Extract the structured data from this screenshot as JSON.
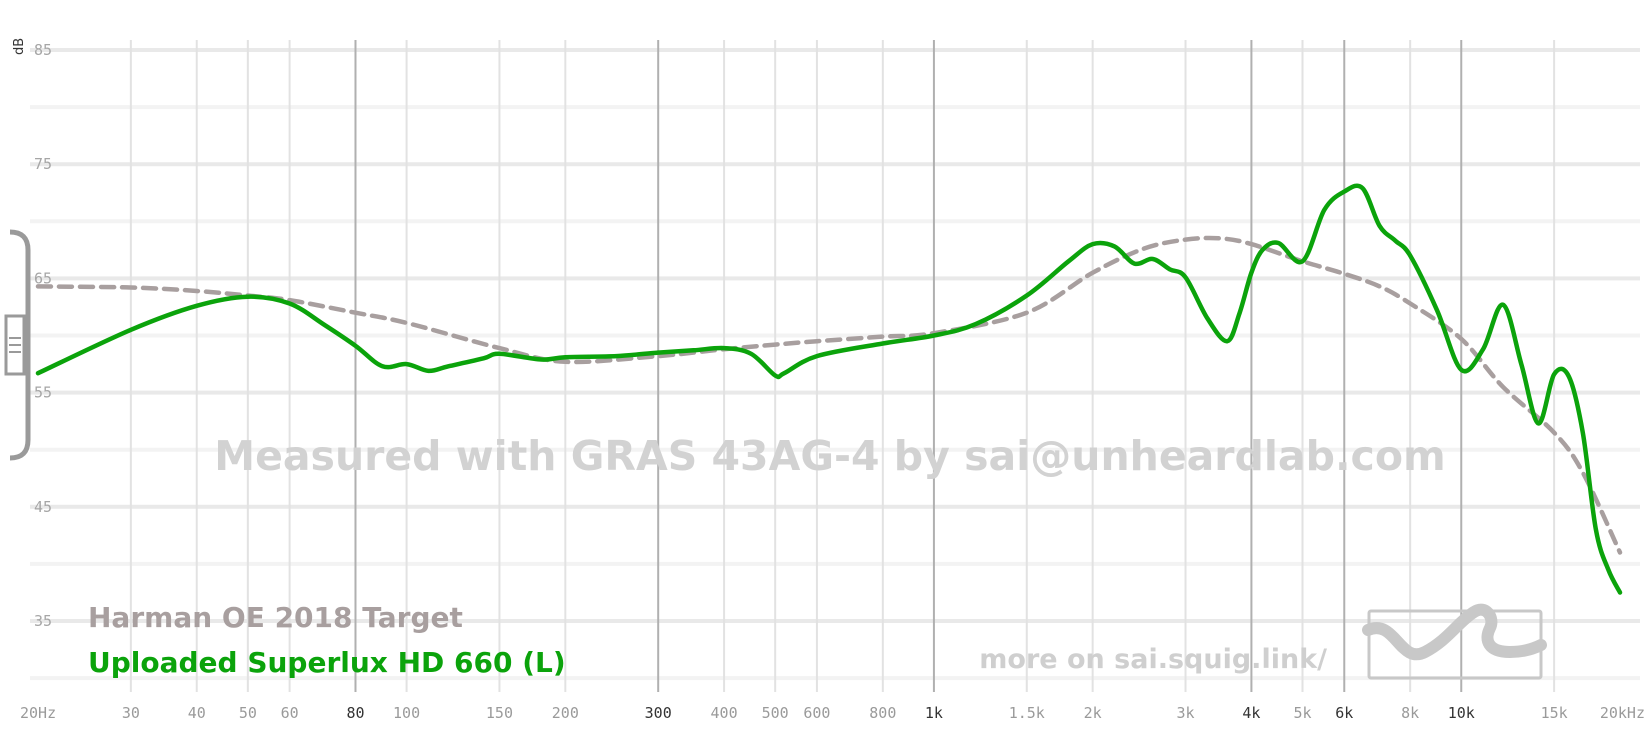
{
  "chart_data": {
    "type": "line",
    "xscale": "log",
    "xlim": [
      20,
      20000
    ],
    "ylim": [
      30,
      86
    ],
    "ylabel": "dB",
    "yticks": [
      35,
      45,
      55,
      65,
      75,
      85
    ],
    "xticks": [
      {
        "f": 20,
        "label": "20Hz",
        "major": false
      },
      {
        "f": 30,
        "label": "30",
        "major": false
      },
      {
        "f": 40,
        "label": "40",
        "major": false
      },
      {
        "f": 50,
        "label": "50",
        "major": false
      },
      {
        "f": 60,
        "label": "60",
        "major": false
      },
      {
        "f": 80,
        "label": "80",
        "major": true
      },
      {
        "f": 100,
        "label": "100",
        "major": false
      },
      {
        "f": 150,
        "label": "150",
        "major": false
      },
      {
        "f": 200,
        "label": "200",
        "major": false
      },
      {
        "f": 300,
        "label": "300",
        "major": true
      },
      {
        "f": 400,
        "label": "400",
        "major": false
      },
      {
        "f": 500,
        "label": "500",
        "major": false
      },
      {
        "f": 600,
        "label": "600",
        "major": false
      },
      {
        "f": 800,
        "label": "800",
        "major": false
      },
      {
        "f": 1000,
        "label": "1k",
        "major": true
      },
      {
        "f": 1500,
        "label": "1.5k",
        "major": false
      },
      {
        "f": 2000,
        "label": "2k",
        "major": false
      },
      {
        "f": 3000,
        "label": "3k",
        "major": false
      },
      {
        "f": 4000,
        "label": "4k",
        "major": true
      },
      {
        "f": 5000,
        "label": "5k",
        "major": false
      },
      {
        "f": 6000,
        "label": "6k",
        "major": true
      },
      {
        "f": 8000,
        "label": "8k",
        "major": false
      },
      {
        "f": 10000,
        "label": "10k",
        "major": true
      },
      {
        "f": 15000,
        "label": "15k",
        "major": false
      },
      {
        "f": 20000,
        "label": "20kHz",
        "major": false
      }
    ],
    "series": [
      {
        "name": "Harman OE 2018 Target",
        "color": "#a89f9f",
        "dashed": true,
        "x": [
          20,
          30,
          40,
          50,
          60,
          80,
          100,
          150,
          200,
          300,
          400,
          500,
          600,
          800,
          1000,
          1500,
          2000,
          2500,
          3000,
          3500,
          4000,
          5000,
          6000,
          7000,
          8000,
          10000,
          12000,
          15000,
          17000,
          20000
        ],
        "y": [
          64.3,
          64.2,
          63.9,
          63.5,
          63.1,
          62.0,
          61.1,
          58.9,
          57.7,
          58.2,
          58.8,
          59.2,
          59.5,
          59.9,
          60.2,
          62.0,
          65.5,
          67.6,
          68.4,
          68.5,
          68.0,
          66.5,
          65.4,
          64.3,
          62.8,
          59.7,
          55.5,
          51.5,
          48.0,
          41.0
        ]
      },
      {
        "name": "Uploaded Superlux HD 660 (L)",
        "color": "#0ba30b",
        "dashed": false,
        "x": [
          20,
          30,
          40,
          50,
          60,
          70,
          80,
          90,
          100,
          110,
          120,
          140,
          150,
          180,
          200,
          250,
          300,
          350,
          400,
          450,
          500,
          520,
          600,
          800,
          1000,
          1200,
          1500,
          1800,
          2000,
          2200,
          2400,
          2600,
          2800,
          3000,
          3300,
          3600,
          3800,
          4000,
          4200,
          4500,
          5000,
          5500,
          6000,
          6500,
          7000,
          7500,
          8000,
          9000,
          10000,
          11000,
          12000,
          13000,
          14000,
          15000,
          16000,
          17000,
          18000,
          19000,
          20000
        ],
        "y": [
          56.7,
          60.5,
          62.6,
          63.4,
          62.8,
          60.9,
          59.1,
          57.3,
          57.5,
          56.9,
          57.3,
          58.0,
          58.4,
          57.9,
          58.1,
          58.2,
          58.5,
          58.7,
          58.9,
          58.4,
          56.5,
          56.7,
          58.2,
          59.3,
          60.0,
          61.0,
          63.5,
          66.5,
          68.0,
          67.8,
          66.3,
          66.7,
          65.8,
          65.1,
          61.5,
          59.5,
          62.0,
          65.5,
          67.5,
          68.1,
          66.5,
          71.0,
          72.6,
          72.9,
          69.6,
          68.3,
          67.0,
          62.2,
          57.0,
          58.8,
          62.7,
          57.5,
          52.3,
          56.6,
          56.4,
          51.5,
          43.0,
          39.5,
          37.5
        ]
      }
    ]
  },
  "watermark": "Measured with GRAS 43AG-4 by sai@unheardlab.com",
  "credit": "more on sai.squig.link/"
}
